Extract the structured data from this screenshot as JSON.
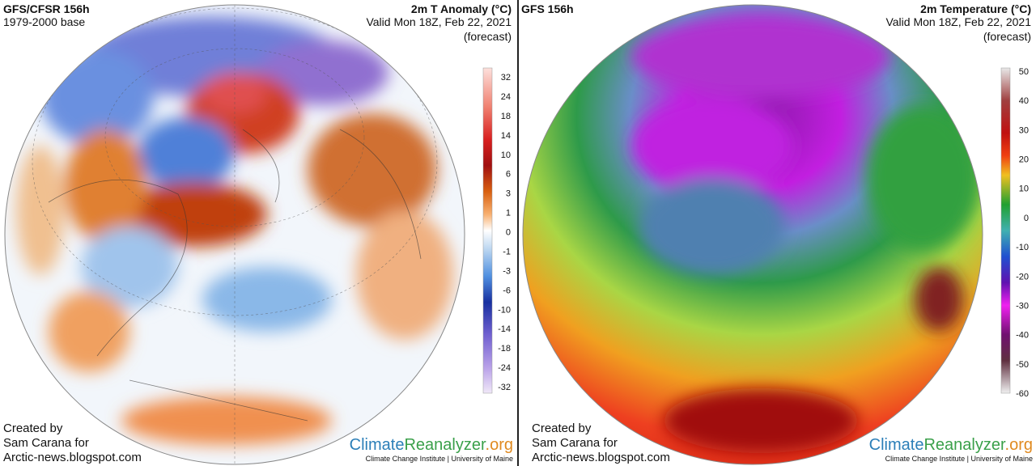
{
  "panels": [
    {
      "model": "GFS/CFSR 156h",
      "base": "1979-2000 base",
      "title": "2m T Anomaly (°C)",
      "valid": "Valid Mon 18Z, Feb 22, 2021",
      "forecast": "(forecast)",
      "credit": [
        "Created by",
        "Sam Carana for",
        "Arctic-news.blogspot.com"
      ],
      "logo": [
        "Climate",
        "Reanalyzer",
        ".org"
      ],
      "institute": "Climate Change Institute | University of Maine",
      "colorbar": [
        32,
        24,
        18,
        14,
        10,
        6,
        3,
        1,
        0,
        -1,
        -3,
        -6,
        -10,
        -14,
        -18,
        -24,
        -32
      ]
    },
    {
      "model": "GFS 156h",
      "title": "2m Temperature (°C)",
      "valid": "Valid Mon 18Z, Feb 22, 2021",
      "forecast": "(forecast)",
      "credit": [
        "Created by",
        "Sam Carana for",
        "Arctic-news.blogspot.com"
      ],
      "logo": [
        "Climate",
        "Reanalyzer",
        ".org"
      ],
      "institute": "Climate Change Institute | University of Maine",
      "colorbar": [
        50,
        40,
        30,
        20,
        10,
        0,
        -10,
        -20,
        -30,
        -40,
        -50,
        -60
      ]
    }
  ]
}
